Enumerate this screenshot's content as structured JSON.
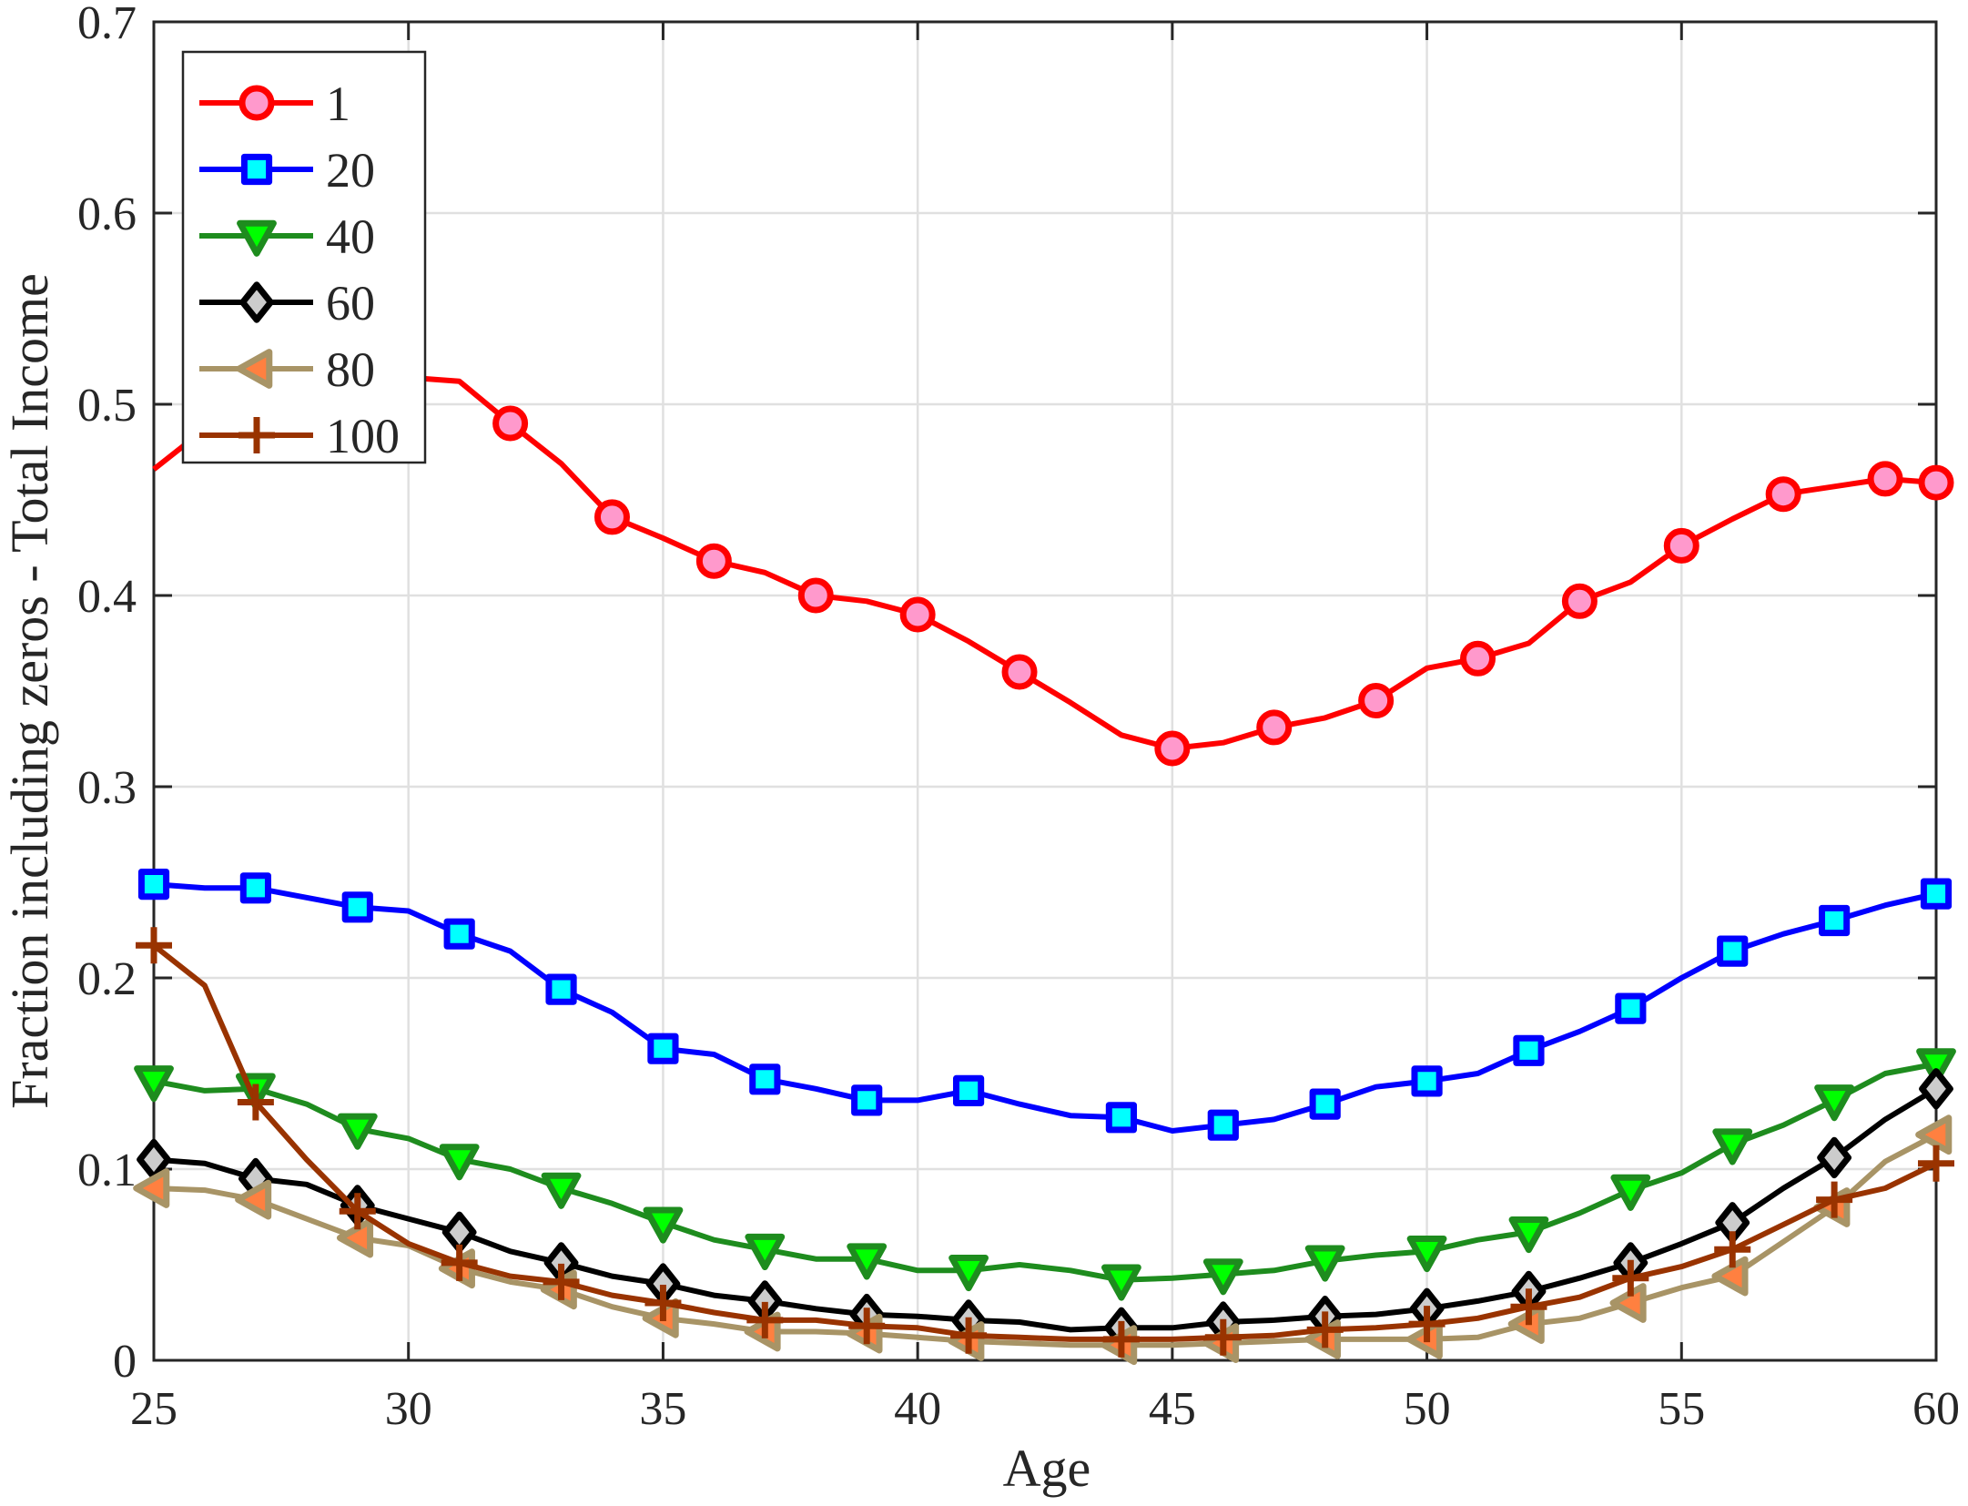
{
  "chart_data": {
    "type": "line",
    "title": "",
    "xlabel": "Age",
    "ylabel": "Fraction including zeros - Total Income",
    "xlim": [
      25,
      60
    ],
    "ylim": [
      0,
      0.7
    ],
    "xticks": [
      25,
      30,
      35,
      40,
      45,
      50,
      55,
      60
    ],
    "xtick_labels": [
      "25",
      "30",
      "35",
      "40",
      "45",
      "50",
      "55",
      "60"
    ],
    "yticks": [
      0,
      0.1,
      0.2,
      0.3,
      0.4,
      0.5,
      0.6,
      0.7
    ],
    "ytick_labels": [
      "0",
      "0.1",
      "0.2",
      "0.3",
      "0.4",
      "0.5",
      "0.6",
      "0.7"
    ],
    "grid": true,
    "legend_position": "upper left",
    "x": [
      25,
      26,
      27,
      28,
      29,
      30,
      31,
      32,
      33,
      34,
      35,
      36,
      37,
      38,
      39,
      40,
      41,
      42,
      43,
      44,
      45,
      46,
      47,
      48,
      49,
      50,
      51,
      52,
      53,
      54,
      55,
      56,
      57,
      58,
      59,
      60
    ],
    "series": [
      {
        "name": "1",
        "color": "#ff0000",
        "marker": "circle",
        "marker_fill": "#ff99cc",
        "marker_x": [
          26,
          28,
          30,
          32,
          34,
          36,
          38,
          40,
          42,
          45,
          47,
          49,
          51,
          53,
          55,
          57,
          59,
          60
        ],
        "values": [
          0.466,
          0.487,
          0.495,
          0.503,
          0.51,
          0.514,
          0.512,
          0.49,
          0.469,
          0.441,
          0.43,
          0.418,
          0.412,
          0.4,
          0.397,
          0.39,
          0.376,
          0.36,
          0.344,
          0.327,
          0.32,
          0.323,
          0.331,
          0.336,
          0.345,
          0.362,
          0.367,
          0.375,
          0.397,
          0.407,
          0.426,
          0.44,
          0.453,
          0.457,
          0.461,
          0.459
        ]
      },
      {
        "name": "20",
        "color": "#0000ff",
        "marker": "square",
        "marker_fill": "#00ffff",
        "marker_x": [
          25,
          27,
          29,
          31,
          33,
          35,
          37,
          39,
          41,
          44,
          46,
          48,
          50,
          52,
          54,
          56,
          58,
          60
        ],
        "values": [
          0.249,
          0.247,
          0.247,
          0.242,
          0.237,
          0.235,
          0.223,
          0.214,
          0.194,
          0.182,
          0.163,
          0.16,
          0.147,
          0.142,
          0.136,
          0.136,
          0.141,
          0.134,
          0.128,
          0.127,
          0.12,
          0.123,
          0.126,
          0.134,
          0.143,
          0.146,
          0.15,
          0.162,
          0.172,
          0.184,
          0.2,
          0.214,
          0.223,
          0.23,
          0.238,
          0.244
        ]
      },
      {
        "name": "40",
        "color": "#1e8c1e",
        "marker": "triangle-down",
        "marker_fill": "#00ff00",
        "marker_x": [
          25,
          27,
          29,
          31,
          33,
          35,
          37,
          39,
          41,
          44,
          46,
          48,
          50,
          52,
          54,
          56,
          58,
          60
        ],
        "values": [
          0.146,
          0.141,
          0.142,
          0.134,
          0.121,
          0.116,
          0.105,
          0.1,
          0.09,
          0.082,
          0.072,
          0.063,
          0.058,
          0.053,
          0.053,
          0.047,
          0.047,
          0.05,
          0.047,
          0.042,
          0.043,
          0.045,
          0.047,
          0.052,
          0.055,
          0.057,
          0.063,
          0.067,
          0.077,
          0.089,
          0.098,
          0.113,
          0.123,
          0.136,
          0.15,
          0.155
        ]
      },
      {
        "name": "60",
        "color": "#000000",
        "marker": "diamond",
        "marker_fill": "#cccccc",
        "marker_x": [
          25,
          27,
          29,
          31,
          33,
          35,
          37,
          39,
          41,
          44,
          46,
          48,
          50,
          52,
          54,
          56,
          58,
          60
        ],
        "values": [
          0.105,
          0.103,
          0.095,
          0.092,
          0.081,
          0.074,
          0.067,
          0.057,
          0.051,
          0.044,
          0.04,
          0.034,
          0.031,
          0.027,
          0.024,
          0.023,
          0.021,
          0.02,
          0.016,
          0.017,
          0.017,
          0.02,
          0.021,
          0.023,
          0.024,
          0.027,
          0.031,
          0.036,
          0.043,
          0.051,
          0.061,
          0.072,
          0.09,
          0.106,
          0.126,
          0.142
        ]
      },
      {
        "name": "80",
        "color": "#a89466",
        "marker": "triangle-left",
        "marker_fill": "#ff8040",
        "marker_x": [
          25,
          27,
          29,
          31,
          33,
          35,
          37,
          39,
          41,
          44,
          46,
          48,
          50,
          52,
          54,
          56,
          58,
          60
        ],
        "values": [
          0.09,
          0.089,
          0.084,
          0.074,
          0.064,
          0.06,
          0.048,
          0.041,
          0.037,
          0.028,
          0.022,
          0.019,
          0.015,
          0.015,
          0.014,
          0.012,
          0.01,
          0.009,
          0.008,
          0.008,
          0.008,
          0.009,
          0.01,
          0.011,
          0.011,
          0.011,
          0.012,
          0.019,
          0.022,
          0.03,
          0.038,
          0.044,
          0.062,
          0.08,
          0.104,
          0.118
        ]
      },
      {
        "name": "100",
        "color": "#993300",
        "marker": "plus",
        "marker_fill": "none",
        "marker_x": [
          25,
          27,
          29,
          31,
          33,
          35,
          37,
          39,
          41,
          44,
          46,
          48,
          50,
          52,
          54,
          56,
          58,
          60
        ],
        "values": [
          0.217,
          0.196,
          0.135,
          0.105,
          0.078,
          0.061,
          0.051,
          0.044,
          0.041,
          0.034,
          0.03,
          0.025,
          0.021,
          0.021,
          0.018,
          0.017,
          0.013,
          0.012,
          0.011,
          0.011,
          0.011,
          0.012,
          0.013,
          0.016,
          0.017,
          0.019,
          0.022,
          0.028,
          0.033,
          0.043,
          0.049,
          0.058,
          0.071,
          0.084,
          0.09,
          0.103
        ]
      }
    ]
  }
}
